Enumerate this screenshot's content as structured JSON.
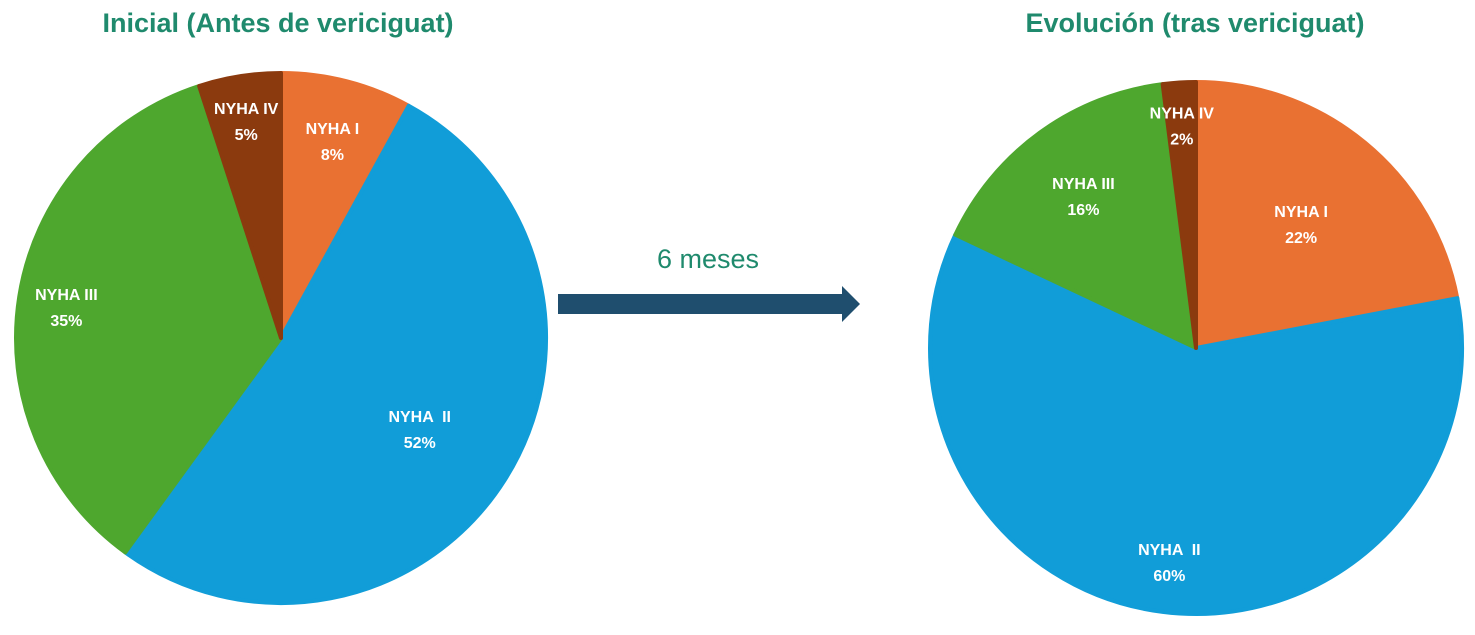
{
  "transition": {
    "label": "6 meses",
    "arrow_color": "#1f4e6e"
  },
  "chart_data": [
    {
      "type": "pie",
      "title": "Inicial (Antes de vericiguat)",
      "slices": [
        {
          "label": "NYHA I",
          "value": 8,
          "value_label": "8%",
          "color": "#e97132"
        },
        {
          "label": "NYHA  II",
          "value": 52,
          "value_label": "52%",
          "color": "#119dd8"
        },
        {
          "label": "NYHA III",
          "value": 35,
          "value_label": "35%",
          "color": "#4ea72e"
        },
        {
          "label": "NYHA IV",
          "value": 5,
          "value_label": "5%",
          "color": "#8b3a0e"
        }
      ]
    },
    {
      "type": "pie",
      "title": "Evolución (tras vericiguat)",
      "slices": [
        {
          "label": "NYHA I",
          "value": 22,
          "value_label": "22%",
          "color": "#e97132"
        },
        {
          "label": "NYHA  II",
          "value": 60,
          "value_label": "60%",
          "color": "#119dd8"
        },
        {
          "label": "NYHA III",
          "value": 16,
          "value_label": "16%",
          "color": "#4ea72e"
        },
        {
          "label": "NYHA IV",
          "value": 2,
          "value_label": "2%",
          "color": "#8b3a0e"
        }
      ]
    }
  ]
}
